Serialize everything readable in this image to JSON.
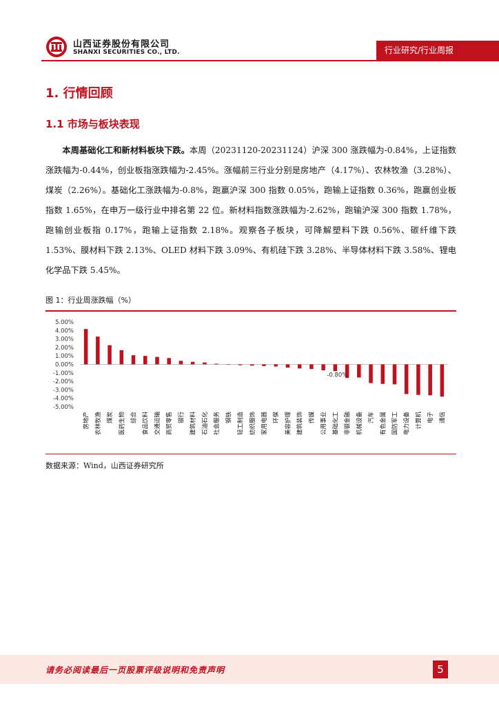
{
  "header": {
    "company_cn": "山西证券股份有限公司",
    "company_en": "SHANXI SECURITIES CO., LTD.",
    "report_type": "行业研究/行业周报"
  },
  "section": {
    "h1": "1. 行情回顾",
    "h2": "1.1  市场与板块表现"
  },
  "paragraph": {
    "lead": "本周基础化工和新材料板块下跌。",
    "body": "本周（20231120-20231124）沪深 300 涨跌幅为-0.84%，上证指数涨跌幅为-0.44%，创业板指涨跌幅为-2.45%。涨幅前三行业分别是房地产（4.17%）、农林牧渔（3.28%）、煤炭（2.26%）。基础化工涨跌幅为-0.8%，跑赢沪深 300 指数 0.05%，跑输上证指数 0.36%，跑赢创业板指数 1.65%，在申万一级行业中排名第 22 位。新材料指数涨跌幅为-2.62%，跑输沪深 300 指数 1.78%，跑输创业板指 0.17%，跑输上证指数 2.18%。观察各子板块，可降解塑料下跌 0.56%、碳纤维下跌 1.53%、膜材料下跌 2.13%、OLED 材料下跌 3.09%、有机硅下跌 3.28%、半导体材料下跌 3.58%、锂电化学品下跌 5.45%。"
  },
  "figure": {
    "title": "图 1：行业周涨跌幅（%）",
    "source": "数据来源：Wind，山西证券研究所"
  },
  "chart_data": {
    "type": "bar",
    "title": "",
    "xlabel": "",
    "ylabel": "",
    "ylim": [
      -5,
      5
    ],
    "y_ticks": [
      "5.00%",
      "4.00%",
      "3.00%",
      "2.00%",
      "1.00%",
      "0.00%",
      "-1.00%",
      "-2.00%",
      "-3.00%",
      "-4.00%",
      "-5.00%"
    ],
    "bar_color": "#c0111f",
    "categories": [
      "房地产",
      "农林牧渔",
      "煤炭",
      "医药生物",
      "综合",
      "食品饮料",
      "交通运输",
      "商贸零售",
      "银行",
      "建筑材料",
      "石油石化",
      "社会服务",
      "钢铁",
      "轻工制造",
      "纺织服饰",
      "家用电器",
      "环保",
      "美容护理",
      "建筑装饰",
      "传媒",
      "公用事业",
      "基础化工",
      "非银金融",
      "机械设备",
      "汽车",
      "有色金属",
      "国防军工",
      "电力设备",
      "计算机",
      "电子",
      "通信"
    ],
    "values": [
      4.17,
      3.28,
      2.26,
      1.68,
      1.08,
      1.0,
      0.88,
      0.75,
      0.42,
      0.3,
      0.22,
      0.08,
      -0.05,
      -0.1,
      -0.15,
      -0.2,
      -0.25,
      -0.38,
      -0.48,
      -0.55,
      -0.7,
      -0.8,
      -1.6,
      -1.55,
      -2.2,
      -2.3,
      -2.35,
      -3.5,
      -3.6,
      -3.65,
      -3.8
    ],
    "data_labels": [
      {
        "category": "基础化工",
        "text": "-0.80%"
      }
    ]
  },
  "footer": {
    "disclaimer": "请务必阅读最后一页股票评级说明和免责声明",
    "page_number": "5"
  }
}
